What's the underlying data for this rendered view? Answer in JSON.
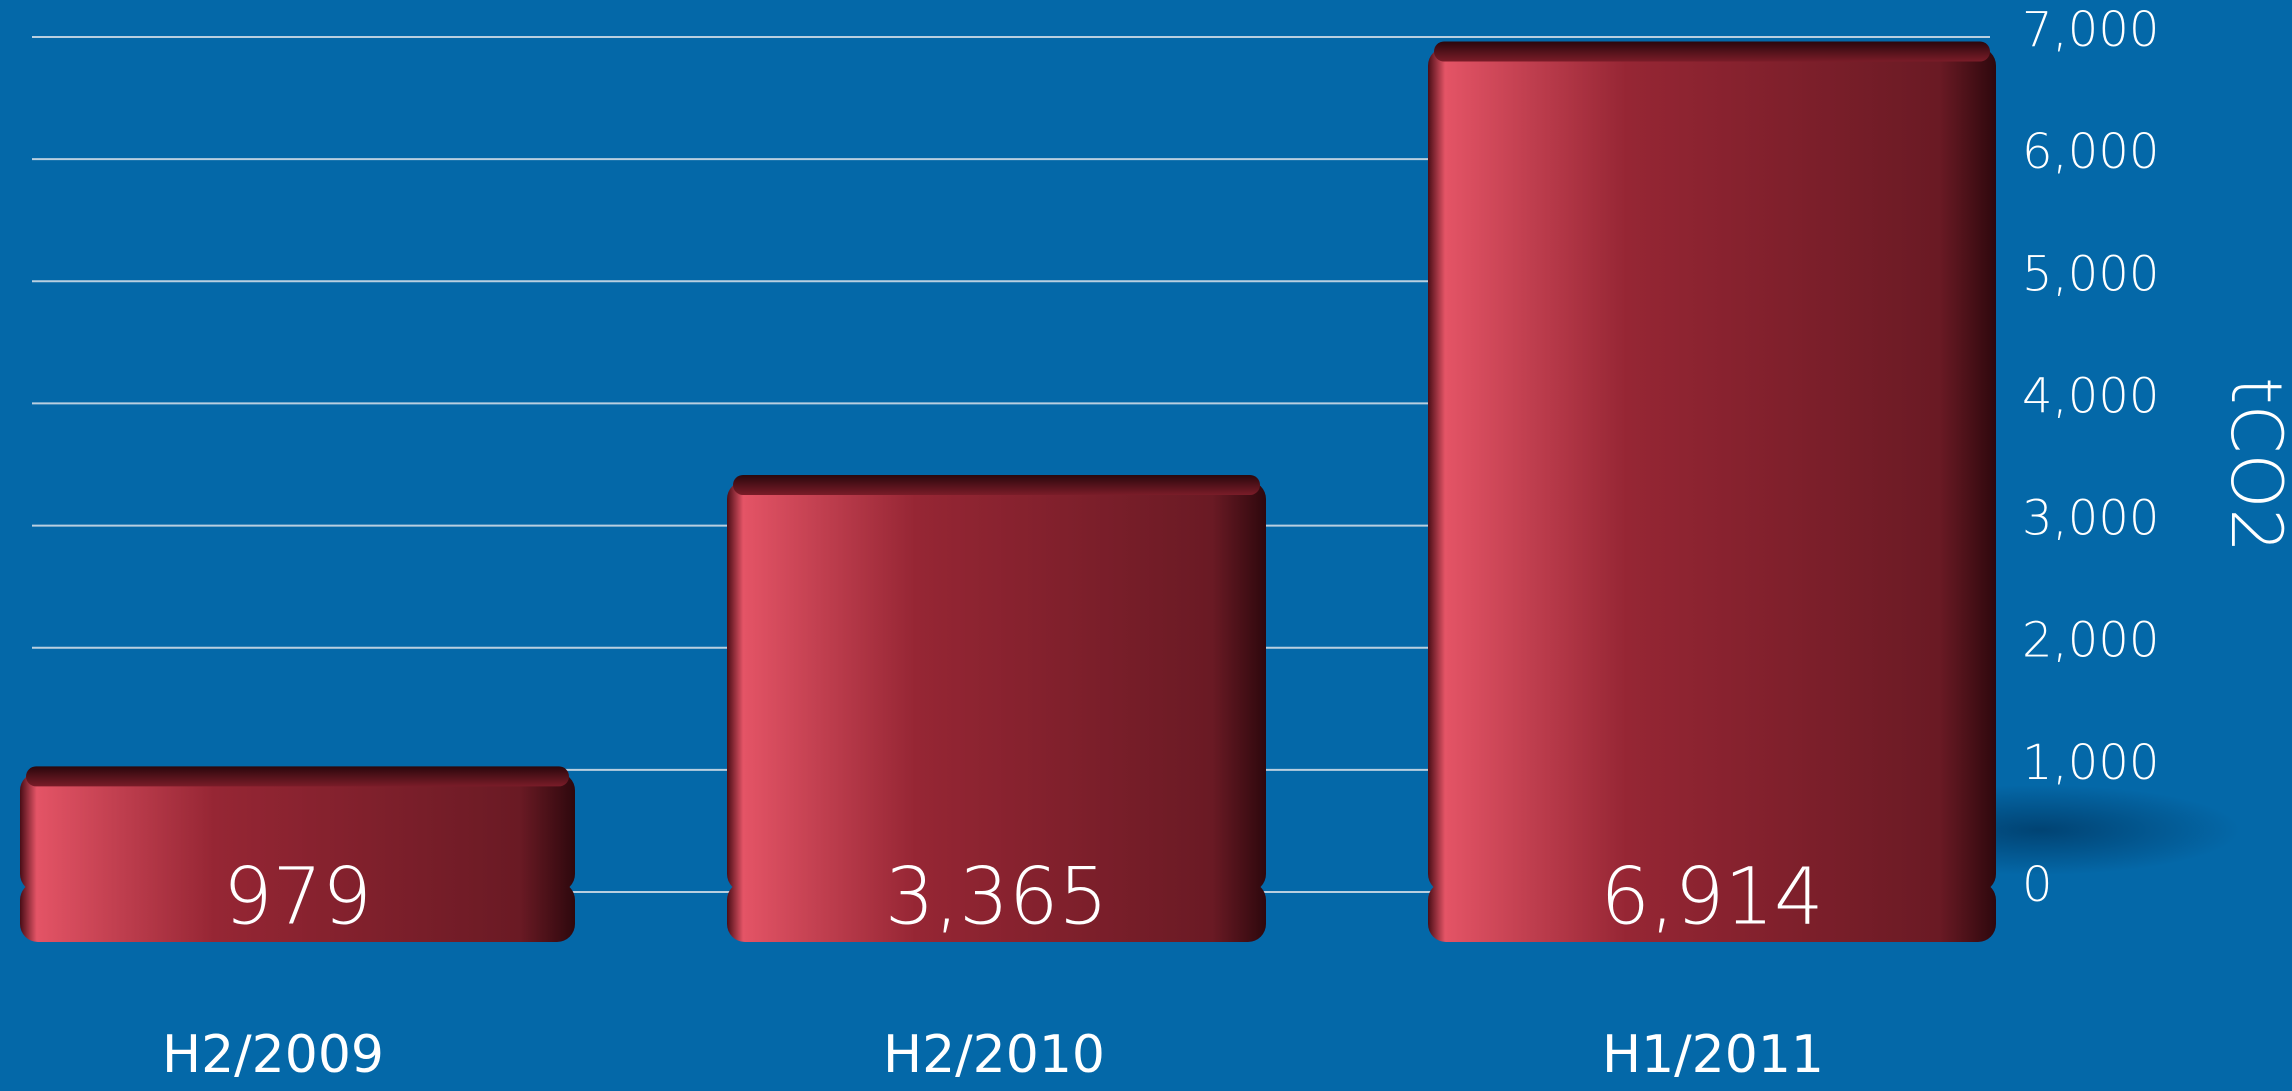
{
  "chart_data": {
    "type": "bar",
    "categories": [
      "H2/2009",
      "H2/2010",
      "H1/2011"
    ],
    "values": [
      979,
      3365,
      6914
    ],
    "value_labels": [
      "979",
      "3,365",
      "6,914"
    ],
    "color": "#8b2230",
    "y_label": "tCO2",
    "ylim": [
      0,
      7000
    ],
    "yticks": [
      0,
      {
        "value": 1000,
        "label": "1,000"
      },
      {
        "value": 2000,
        "label": "2,000"
      },
      {
        "value": 3000,
        "label": "3,000"
      },
      {
        "value": 4000,
        "label": "4,000"
      },
      {
        "value": 5000,
        "label": "5,000"
      },
      {
        "value": 6000,
        "label": "6,000"
      },
      {
        "value": 7000,
        "label": "7,000"
      }
    ],
    "grid": true
  }
}
